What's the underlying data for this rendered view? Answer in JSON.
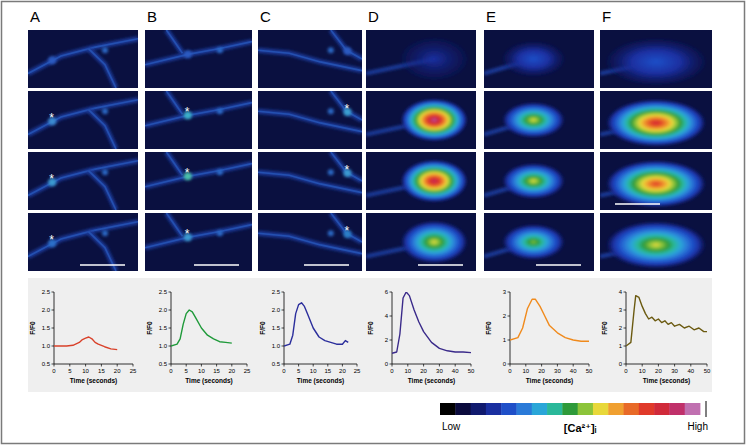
{
  "panels": [
    {
      "label": "A",
      "asterisks": true
    },
    {
      "label": "B",
      "asterisks": true
    },
    {
      "label": "C",
      "asterisks": true
    },
    {
      "label": "D",
      "asterisks": false
    },
    {
      "label": "E",
      "asterisks": false
    },
    {
      "label": "F",
      "asterisks": false
    }
  ],
  "asterisk": "*",
  "chart_data": [
    {
      "type": "line",
      "xlabel": "Time (seconds)",
      "ylabel": "F/F0",
      "color": "#d9412a",
      "x": [
        0,
        2,
        4,
        6,
        8,
        9,
        10,
        11,
        12,
        13,
        14,
        16,
        18,
        20
      ],
      "values": [
        1.0,
        1.0,
        1.0,
        1.02,
        1.1,
        1.18,
        1.22,
        1.25,
        1.2,
        1.1,
        1.05,
        0.98,
        0.92,
        0.9
      ],
      "xlim": [
        0,
        25
      ],
      "xticks": [
        0,
        5,
        10,
        15,
        20,
        25
      ],
      "ylim": [
        0.5,
        2.5
      ],
      "yticks": [
        0.5,
        {
          "value": 1,
          "label": "1.0"
        },
        1.5,
        {
          "value": 2,
          "label": "2.0"
        },
        2.5
      ]
    },
    {
      "type": "line",
      "xlabel": "Time (seconds)",
      "ylabel": "F/F0",
      "color": "#1f9a3a",
      "x": [
        0,
        2,
        3,
        4,
        5,
        6,
        7,
        8,
        10,
        12,
        14,
        16,
        18,
        20
      ],
      "values": [
        1.0,
        1.05,
        1.2,
        1.6,
        1.9,
        2.0,
        1.95,
        1.8,
        1.5,
        1.3,
        1.2,
        1.12,
        1.1,
        1.08
      ],
      "xlim": [
        0,
        25
      ],
      "xticks": [
        0,
        5,
        10,
        15,
        20,
        25
      ],
      "ylim": [
        0.5,
        2.5
      ],
      "yticks": [
        0.5,
        {
          "value": 1,
          "label": "1.0"
        },
        1.5,
        {
          "value": 2,
          "label": "2.0"
        },
        2.5
      ]
    },
    {
      "type": "line",
      "xlabel": "Time (seconds)",
      "ylabel": "F/F0",
      "color": "#2b2e9c",
      "x": [
        0,
        2,
        3,
        4,
        5,
        6,
        7,
        8,
        10,
        12,
        14,
        16,
        18,
        20,
        21,
        22
      ],
      "values": [
        1.0,
        1.05,
        1.3,
        1.9,
        2.15,
        2.2,
        2.1,
        1.9,
        1.5,
        1.25,
        1.15,
        1.1,
        1.05,
        1.05,
        1.15,
        1.1
      ],
      "xlim": [
        0,
        25
      ],
      "xticks": [
        0,
        5,
        10,
        15,
        20,
        25
      ],
      "ylim": [
        0.5,
        2.5
      ],
      "yticks": [
        0.5,
        {
          "value": 1,
          "label": "1.0"
        },
        1.5,
        {
          "value": 2,
          "label": "2.0"
        },
        2.5
      ]
    },
    {
      "type": "line",
      "xlabel": "Time (seconds)",
      "ylabel": "F/F0",
      "color": "#3a2a8a",
      "x": [
        0,
        3,
        5,
        7,
        9,
        11,
        14,
        17,
        20,
        25,
        30,
        35,
        40,
        45,
        50
      ],
      "values": [
        0.9,
        1.0,
        2.5,
        5.5,
        6.0,
        5.7,
        4.5,
        3.5,
        2.7,
        1.8,
        1.3,
        1.1,
        1.0,
        1.0,
        0.95
      ],
      "xlim": [
        0,
        50
      ],
      "xticks": [
        0,
        10,
        20,
        30,
        40,
        50
      ],
      "ylim": [
        0,
        6
      ],
      "yticks": [
        0,
        2,
        4,
        6
      ]
    },
    {
      "type": "line",
      "xlabel": "Time (seconds)",
      "ylabel": "F/F0",
      "color": "#f08a1c",
      "x": [
        0,
        5,
        8,
        11,
        14,
        16,
        19,
        22,
        25,
        30,
        35,
        40,
        45,
        50
      ],
      "values": [
        1.0,
        1.1,
        1.5,
        2.3,
        2.7,
        2.7,
        2.4,
        2.0,
        1.6,
        1.3,
        1.1,
        1.0,
        0.95,
        0.95
      ],
      "xlim": [
        0,
        50
      ],
      "xticks": [
        0,
        10,
        20,
        30,
        40,
        50
      ],
      "ylim": [
        0,
        3
      ],
      "yticks": [
        0,
        1,
        2,
        3
      ]
    },
    {
      "type": "line",
      "xlabel": "Time (seconds)",
      "ylabel": "F/F0",
      "color": "#6b5a10",
      "x": [
        0,
        3,
        5,
        6,
        8,
        10,
        12,
        14,
        16,
        18,
        20,
        22,
        24,
        26,
        28,
        30,
        33,
        36,
        39,
        42,
        45,
        48,
        50
      ],
      "values": [
        1.0,
        1.2,
        3.0,
        3.8,
        3.7,
        3.2,
        2.8,
        2.5,
        2.6,
        2.4,
        2.5,
        2.3,
        2.4,
        2.2,
        2.3,
        2.1,
        2.2,
        2.0,
        2.1,
        1.9,
        2.0,
        1.8,
        1.8
      ],
      "xlim": [
        0,
        50
      ],
      "xticks": [
        0,
        10,
        20,
        30,
        40,
        50
      ],
      "ylim": [
        0,
        4
      ],
      "yticks": [
        0,
        1,
        2,
        3,
        4
      ]
    }
  ],
  "colorbar": {
    "low_label": "Low",
    "label": "[Ca²⁺]ᵢ",
    "high_label": "High",
    "colors": [
      "#000000",
      "#0a0a3c",
      "#101a6e",
      "#1a2fa0",
      "#1f4fc8",
      "#2a7ad8",
      "#2aa6d8",
      "#2ab89a",
      "#2e9a3a",
      "#8cc43a",
      "#e8d83a",
      "#f0a030",
      "#e86a28",
      "#e03a2a",
      "#d02a3a",
      "#c0306a",
      "#c070b0"
    ]
  }
}
